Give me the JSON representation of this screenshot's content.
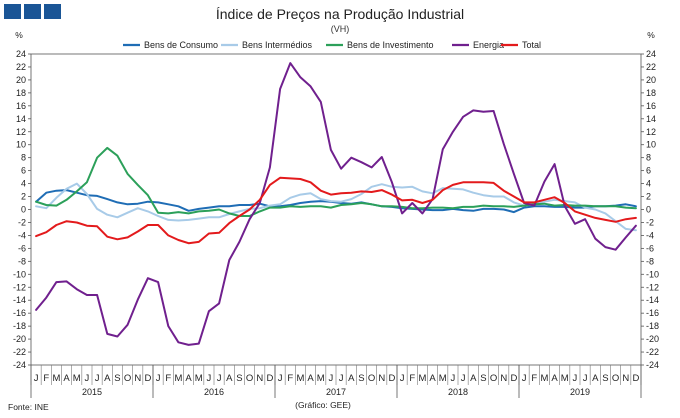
{
  "chart_data": {
    "type": "line",
    "title": "Índice de Preços na Produção Industrial",
    "subtitle": "(VH)",
    "ylabel_left": "%",
    "ylabel_right": "%",
    "ylim": [
      -24,
      24
    ],
    "yticks": [
      -24,
      -22,
      -20,
      -18,
      -16,
      -14,
      -12,
      -10,
      -8,
      -6,
      -4,
      -2,
      0,
      2,
      4,
      6,
      8,
      10,
      12,
      14,
      16,
      18,
      20,
      22,
      24
    ],
    "months": [
      "J",
      "F",
      "M",
      "A",
      "M",
      "J",
      "J",
      "A",
      "S",
      "O",
      "N",
      "D",
      "J",
      "F",
      "M",
      "A",
      "M",
      "J",
      "J",
      "A",
      "S",
      "O",
      "N",
      "D",
      "J",
      "F",
      "M",
      "A",
      "M",
      "J",
      "J",
      "A",
      "S",
      "O",
      "N",
      "D",
      "J",
      "F",
      "M",
      "A",
      "M",
      "J",
      "J",
      "A",
      "S",
      "O",
      "N",
      "D",
      "J",
      "F",
      "M",
      "A",
      "M",
      "J",
      "J",
      "A",
      "S",
      "O",
      "N",
      "D"
    ],
    "years": [
      "2015",
      "2016",
      "2017",
      "2018",
      "2019"
    ],
    "series": [
      {
        "name": "Bens de Consumo",
        "color": "#1f6db5",
        "values": [
          1.2,
          2.6,
          2.9,
          3.0,
          2.6,
          2.2,
          2.1,
          1.6,
          1.1,
          0.8,
          0.9,
          1.2,
          1.1,
          0.8,
          0.5,
          -0.2,
          0.1,
          0.3,
          0.5,
          0.5,
          0.7,
          0.7,
          0.9,
          0.5,
          0.5,
          0.7,
          1.0,
          1.2,
          1.3,
          1.2,
          1.0,
          0.9,
          1.1,
          0.8,
          0.5,
          0.4,
          0.2,
          0.1,
          0.0,
          -0.1,
          -0.1,
          0.1,
          -0.1,
          -0.2,
          0.1,
          0.1,
          0.0,
          -0.4,
          0.3,
          0.5,
          0.5,
          0.4,
          0.4,
          0.3,
          0.3,
          0.5,
          0.5,
          0.6,
          0.8,
          0.5
        ]
      },
      {
        "name": "Bens Intermédios",
        "color": "#a8cbe8",
        "values": [
          0.5,
          0.2,
          1.8,
          3.2,
          4.0,
          2.4,
          0.1,
          -0.8,
          -1.2,
          -0.5,
          0.2,
          -0.3,
          -1.0,
          -1.6,
          -1.7,
          -1.6,
          -1.4,
          -1.2,
          -1.2,
          -0.7,
          -0.3,
          0.1,
          0.2,
          0.6,
          0.8,
          1.8,
          2.3,
          2.5,
          1.6,
          1.3,
          1.2,
          1.6,
          2.4,
          3.5,
          3.9,
          3.5,
          3.4,
          3.5,
          2.8,
          2.5,
          3.3,
          3.2,
          3.1,
          2.6,
          2.2,
          2.0,
          2.0,
          1.1,
          0.6,
          0.9,
          1.2,
          1.5,
          1.3,
          1.1,
          0.3,
          0.0,
          -0.6,
          -1.8,
          -3.0,
          -3.2
        ]
      },
      {
        "name": "Bens de Investimento",
        "color": "#2ca05a",
        "values": [
          1.2,
          0.7,
          0.6,
          1.5,
          2.8,
          4.2,
          8.0,
          9.5,
          8.3,
          5.5,
          3.8,
          2.2,
          -0.5,
          -0.6,
          -0.4,
          -0.6,
          -0.3,
          -0.2,
          0.0,
          -0.6,
          -1.0,
          -1.0,
          -0.3,
          0.3,
          0.3,
          0.5,
          0.4,
          0.5,
          0.5,
          0.3,
          0.7,
          0.8,
          1.0,
          0.8,
          0.5,
          0.5,
          0.4,
          0.2,
          0.2,
          0.3,
          0.3,
          0.2,
          0.4,
          0.4,
          0.6,
          0.5,
          0.5,
          0.4,
          0.6,
          0.8,
          0.9,
          0.6,
          0.7,
          0.6,
          0.6,
          0.5,
          0.5,
          0.5,
          0.3,
          0.2
        ]
      },
      {
        "name": "Energia",
        "color": "#70208e",
        "values": [
          -15.5,
          -13.6,
          -11.2,
          -11.1,
          -12.3,
          -13.2,
          -13.2,
          -19.2,
          -19.6,
          -17.8,
          -13.9,
          -10.6,
          -11.2,
          -18.0,
          -20.5,
          -20.9,
          -20.7,
          -15.7,
          -14.5,
          -7.8,
          -5.0,
          -1.5,
          1.0,
          6.5,
          18.6,
          22.6,
          20.4,
          19.0,
          16.6,
          9.2,
          6.3,
          8.0,
          7.3,
          6.5,
          8.1,
          4.2,
          -0.6,
          1.0,
          -0.6,
          1.6,
          9.3,
          12.0,
          14.3,
          15.3,
          15.1,
          15.2,
          10.1,
          5.5,
          1.0,
          0.6,
          4.3,
          7.0,
          0.5,
          -2.2,
          -1.5,
          -4.5,
          -5.8,
          -6.2,
          -4.3,
          -2.5
        ]
      },
      {
        "name": "Total",
        "color": "#e31a1c",
        "values": [
          -4.1,
          -3.5,
          -2.4,
          -1.8,
          -2.0,
          -2.5,
          -2.6,
          -4.2,
          -4.6,
          -4.3,
          -3.4,
          -2.4,
          -2.4,
          -4.0,
          -4.7,
          -5.2,
          -5.0,
          -3.7,
          -3.6,
          -2.1,
          -1.0,
          0.0,
          1.5,
          3.8,
          4.9,
          4.8,
          4.7,
          4.2,
          2.9,
          2.3,
          2.5,
          2.6,
          2.8,
          2.7,
          3.0,
          2.3,
          1.4,
          1.5,
          1.0,
          1.5,
          3.0,
          3.8,
          4.2,
          4.2,
          4.2,
          4.1,
          2.9,
          2.0,
          1.1,
          1.1,
          1.5,
          1.9,
          1.0,
          -0.3,
          -0.8,
          -1.3,
          -1.6,
          -1.9,
          -1.5,
          -1.3
        ]
      }
    ]
  },
  "header": {
    "title": "Índice de Preços na Produção Industrial",
    "subtitle": "(VH)"
  },
  "footer": {
    "source": "Fonte: INE",
    "credit": "(Gráfico: GEE)"
  }
}
